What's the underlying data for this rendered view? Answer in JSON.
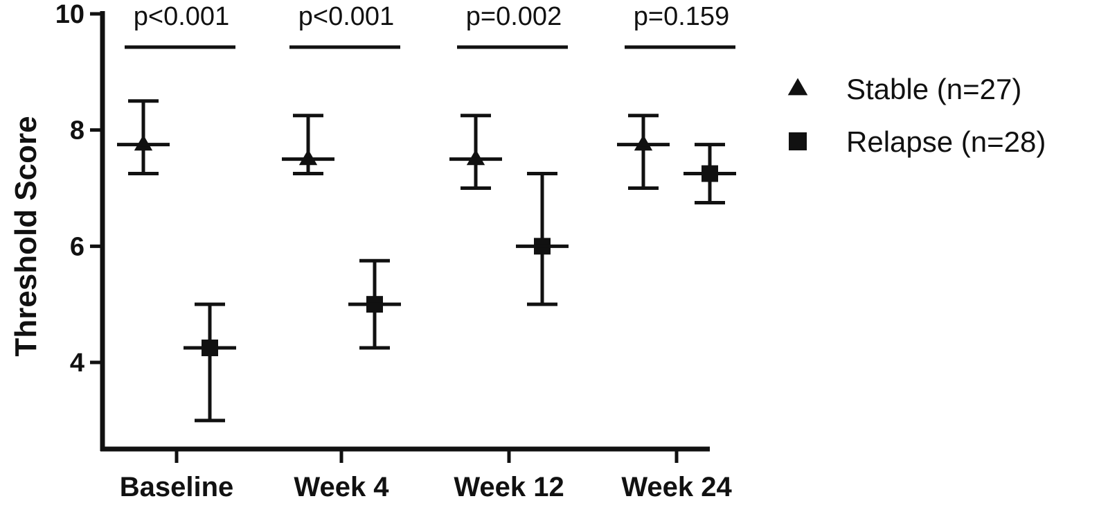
{
  "chart_data": {
    "type": "scatter",
    "title": "",
    "xlabel": "",
    "ylabel": "Threshold Score",
    "ylim": [
      2.5,
      10
    ],
    "yticks": [
      4,
      6,
      8,
      10
    ],
    "categories": [
      "Baseline",
      "Week 4",
      "Week 12",
      "Week 24"
    ],
    "series": [
      {
        "name": "Stable (n=27)",
        "marker": "triangle",
        "median": [
          7.75,
          7.5,
          7.5,
          7.75
        ],
        "low": [
          7.25,
          7.25,
          7.0,
          7.0
        ],
        "high": [
          8.5,
          8.25,
          8.25,
          8.25
        ]
      },
      {
        "name": "Relapse (n=28)",
        "marker": "square",
        "median": [
          4.25,
          5.0,
          6.0,
          7.25
        ],
        "low": [
          3.0,
          4.25,
          5.0,
          6.75
        ],
        "high": [
          5.0,
          5.75,
          7.25,
          7.75
        ]
      }
    ],
    "annotations": [
      "p<0.001",
      "p<0.001",
      "p=0.002",
      "p=0.159"
    ],
    "legend_position": "right",
    "grid": false,
    "colors": {
      "ink": "#111111"
    }
  }
}
